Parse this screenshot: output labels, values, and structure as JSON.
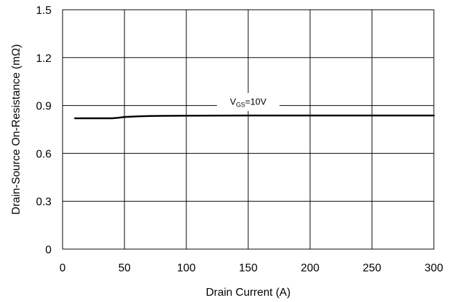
{
  "chart_data": {
    "type": "line",
    "title": "",
    "xlabel": "Drain Current (A)",
    "ylabel": "Drain-Source On-Resistance (mΩ)",
    "xlim": [
      0,
      300
    ],
    "ylim": [
      0,
      1.5
    ],
    "xticks": [
      0,
      50,
      100,
      150,
      200,
      250,
      300
    ],
    "yticks": [
      0,
      0.3,
      0.6,
      0.9,
      1.2,
      1.5
    ],
    "xtick_labels": [
      "0",
      "50",
      "100",
      "150",
      "200",
      "250",
      "300"
    ],
    "ytick_labels": [
      "0",
      "0.3",
      "0.6",
      "0.9",
      "1.2",
      "1.5"
    ],
    "grid": true,
    "series": [
      {
        "x": [
          10,
          20,
          30,
          40,
          45,
          50,
          60,
          70,
          80,
          100,
          150,
          200,
          250,
          300
        ],
        "y": [
          0.82,
          0.82,
          0.82,
          0.82,
          0.823,
          0.828,
          0.832,
          0.834,
          0.835,
          0.836,
          0.837,
          0.837,
          0.837,
          0.837
        ],
        "color": "#000000"
      }
    ],
    "annotation": {
      "main": "V",
      "sub": "GS",
      "rest": "=10V",
      "x": 150,
      "y": 0.9
    }
  }
}
